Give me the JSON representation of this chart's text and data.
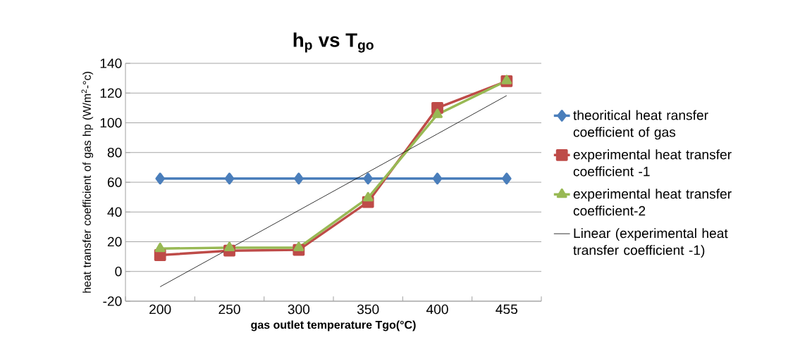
{
  "chart_data": {
    "type": "line",
    "title": "h$_{p}$ vs T$_{go}$",
    "xlabel": "gas outlet temperature Tgo(°C)",
    "ylabel": "heat transfer coefficient of  gas hp (W/m$^{2}$-°c)",
    "categories": [
      "200",
      "250",
      "300",
      "350",
      "400",
      "455"
    ],
    "series": [
      {
        "name": "theoritical heat ransfer coefficient of gas",
        "color": "#4a7ebb",
        "marker": "diamond",
        "values": [
          62.5,
          62.5,
          62.5,
          62.5,
          62.5,
          62.5
        ]
      },
      {
        "name": "experimental heat transfer coefficient -1",
        "color": "#be4b48",
        "marker": "square",
        "values": [
          11,
          14,
          14.5,
          46.7,
          110,
          128
        ]
      },
      {
        "name": "experimental heat transfer coefficient-2",
        "color": "#98b954",
        "marker": "triangle",
        "values": [
          15.4,
          16,
          16,
          49.5,
          105.6,
          128.3
        ]
      },
      {
        "name": "Linear (experimental heat transfer coefficient -1)",
        "color": "#000000",
        "marker": "none",
        "values": [
          -10.3,
          15.4,
          41.1,
          66.8,
          92.5,
          118.3
        ]
      }
    ],
    "ylim": [
      -20,
      140
    ],
    "yticks": [
      -20,
      0,
      20,
      40,
      60,
      80,
      100,
      120,
      140
    ],
    "grid": "y",
    "legend": "right",
    "line_style": "solid"
  }
}
